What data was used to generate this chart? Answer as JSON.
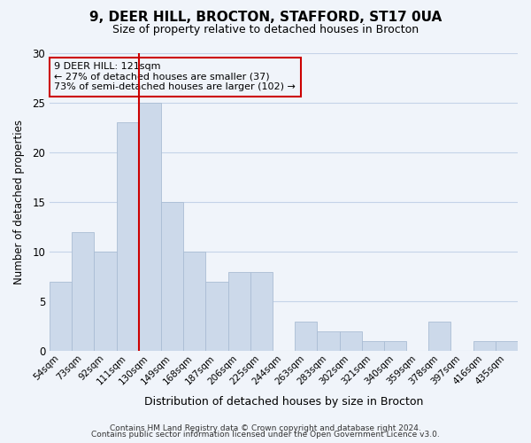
{
  "title1": "9, DEER HILL, BROCTON, STAFFORD, ST17 0UA",
  "title2": "Size of property relative to detached houses in Brocton",
  "xlabel": "Distribution of detached houses by size in Brocton",
  "ylabel": "Number of detached properties",
  "categories": [
    "54sqm",
    "73sqm",
    "92sqm",
    "111sqm",
    "130sqm",
    "149sqm",
    "168sqm",
    "187sqm",
    "206sqm",
    "225sqm",
    "244sqm",
    "263sqm",
    "283sqm",
    "302sqm",
    "321sqm",
    "340sqm",
    "359sqm",
    "378sqm",
    "397sqm",
    "416sqm",
    "435sqm"
  ],
  "values": [
    7,
    12,
    10,
    23,
    25,
    15,
    10,
    7,
    8,
    8,
    0,
    3,
    2,
    2,
    1,
    1,
    0,
    3,
    0,
    1,
    1
  ],
  "bar_color": "#ccd9ea",
  "bar_edge_color": "#aabdd4",
  "vline_x_index": 3,
  "vline_color": "#cc0000",
  "annotation_title": "9 DEER HILL: 121sqm",
  "annotation_line1": "← 27% of detached houses are smaller (37)",
  "annotation_line2": "73% of semi-detached houses are larger (102) →",
  "annotation_box_edge": "#cc0000",
  "ylim": [
    0,
    30
  ],
  "yticks": [
    0,
    5,
    10,
    15,
    20,
    25,
    30
  ],
  "footer1": "Contains HM Land Registry data © Crown copyright and database right 2024.",
  "footer2": "Contains public sector information licensed under the Open Government Licence v3.0.",
  "bg_color": "#f0f4fa"
}
